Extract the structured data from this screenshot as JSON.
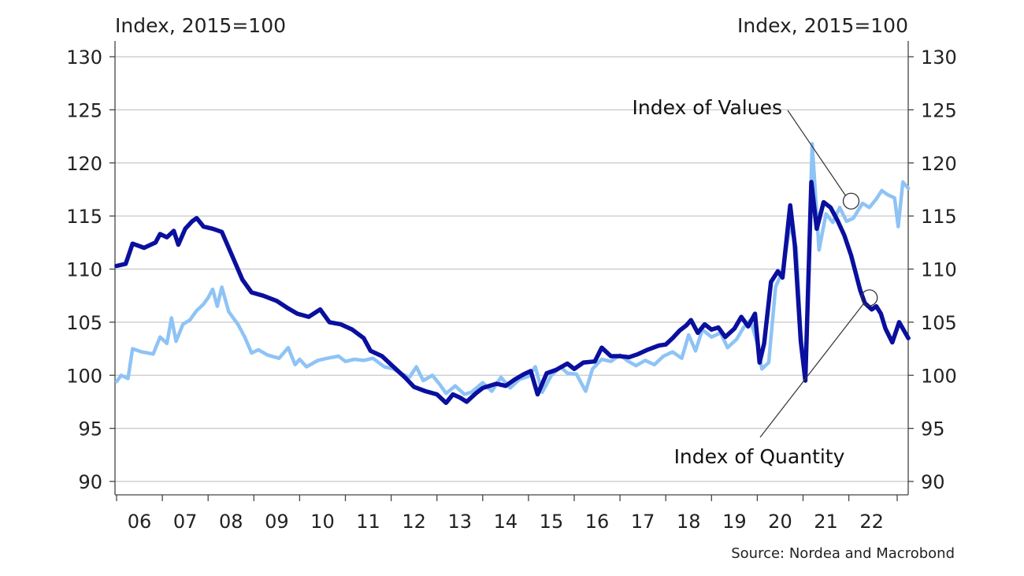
{
  "chart_data": {
    "type": "line",
    "left_axis_title": "Index, 2015=100",
    "right_axis_title": "Index, 2015=100",
    "ylim": [
      90,
      130
    ],
    "y_ticks": [
      90,
      95,
      100,
      105,
      110,
      115,
      120,
      125,
      130
    ],
    "x_range": [
      2006.0,
      2023.0
    ],
    "x_ticks": [
      {
        "label": "06",
        "year": 2006
      },
      {
        "label": "07",
        "year": 2007
      },
      {
        "label": "08",
        "year": 2008
      },
      {
        "label": "09",
        "year": 2009
      },
      {
        "label": "10",
        "year": 2010
      },
      {
        "label": "11",
        "year": 2011
      },
      {
        "label": "12",
        "year": 2012
      },
      {
        "label": "13",
        "year": 2013
      },
      {
        "label": "14",
        "year": 2014
      },
      {
        "label": "15",
        "year": 2015
      },
      {
        "label": "16",
        "year": 2016
      },
      {
        "label": "17",
        "year": 2017
      },
      {
        "label": "18",
        "year": 2018
      },
      {
        "label": "19",
        "year": 2019
      },
      {
        "label": "20",
        "year": 2020
      },
      {
        "label": "21",
        "year": 2021
      },
      {
        "label": "22",
        "year": 2022
      }
    ],
    "grid": "horizontal",
    "colors": {
      "quantity": "#0a0f9e",
      "values": "#8ec3f5",
      "grid": "#c8c8c8",
      "axis": "#444444"
    },
    "series": [
      {
        "name": "Index of Quantity",
        "color": "#0a0f9e",
        "points": [
          [
            2006.0,
            110.3
          ],
          [
            2006.2,
            110.5
          ],
          [
            2006.35,
            112.4
          ],
          [
            2006.6,
            112.0
          ],
          [
            2006.85,
            112.5
          ],
          [
            2006.95,
            113.3
          ],
          [
            2007.1,
            113.0
          ],
          [
            2007.25,
            113.6
          ],
          [
            2007.35,
            112.3
          ],
          [
            2007.5,
            113.8
          ],
          [
            2007.65,
            114.5
          ],
          [
            2007.75,
            114.8
          ],
          [
            2007.9,
            114.0
          ],
          [
            2008.1,
            113.8
          ],
          [
            2008.3,
            113.5
          ],
          [
            2008.5,
            111.5
          ],
          [
            2008.75,
            109.0
          ],
          [
            2008.95,
            107.8
          ],
          [
            2009.2,
            107.5
          ],
          [
            2009.5,
            107.0
          ],
          [
            2009.75,
            106.3
          ],
          [
            2009.95,
            105.8
          ],
          [
            2010.2,
            105.5
          ],
          [
            2010.45,
            106.2
          ],
          [
            2010.65,
            105.0
          ],
          [
            2010.9,
            104.8
          ],
          [
            2011.15,
            104.3
          ],
          [
            2011.4,
            103.5
          ],
          [
            2011.55,
            102.3
          ],
          [
            2011.8,
            101.8
          ],
          [
            2012.05,
            100.8
          ],
          [
            2012.3,
            99.8
          ],
          [
            2012.5,
            98.9
          ],
          [
            2012.75,
            98.5
          ],
          [
            2013.0,
            98.2
          ],
          [
            2013.2,
            97.4
          ],
          [
            2013.35,
            98.2
          ],
          [
            2013.5,
            97.9
          ],
          [
            2013.65,
            97.5
          ],
          [
            2013.85,
            98.3
          ],
          [
            2014.0,
            98.8
          ],
          [
            2014.3,
            99.2
          ],
          [
            2014.5,
            99.0
          ],
          [
            2014.7,
            99.6
          ],
          [
            2014.9,
            100.1
          ],
          [
            2015.05,
            100.4
          ],
          [
            2015.2,
            98.2
          ],
          [
            2015.4,
            100.2
          ],
          [
            2015.6,
            100.5
          ],
          [
            2015.85,
            101.1
          ],
          [
            2016.0,
            100.6
          ],
          [
            2016.2,
            101.2
          ],
          [
            2016.45,
            101.3
          ],
          [
            2016.6,
            102.6
          ],
          [
            2016.8,
            101.8
          ],
          [
            2017.0,
            101.8
          ],
          [
            2017.2,
            101.7
          ],
          [
            2017.4,
            102.0
          ],
          [
            2017.6,
            102.4
          ],
          [
            2017.85,
            102.8
          ],
          [
            2018.0,
            102.9
          ],
          [
            2018.15,
            103.5
          ],
          [
            2018.3,
            104.2
          ],
          [
            2018.45,
            104.7
          ],
          [
            2018.55,
            105.2
          ],
          [
            2018.7,
            104.0
          ],
          [
            2018.85,
            104.8
          ],
          [
            2019.0,
            104.3
          ],
          [
            2019.15,
            104.5
          ],
          [
            2019.3,
            103.6
          ],
          [
            2019.5,
            104.4
          ],
          [
            2019.65,
            105.5
          ],
          [
            2019.8,
            104.6
          ],
          [
            2019.95,
            105.8
          ],
          [
            2020.05,
            101.2
          ],
          [
            2020.15,
            103.0
          ],
          [
            2020.3,
            108.8
          ],
          [
            2020.45,
            109.8
          ],
          [
            2020.55,
            109.2
          ],
          [
            2020.72,
            116.0
          ],
          [
            2020.82,
            112.3
          ],
          [
            2020.95,
            103.2
          ],
          [
            2021.05,
            99.5
          ],
          [
            2021.18,
            118.2
          ],
          [
            2021.3,
            113.8
          ],
          [
            2021.45,
            116.3
          ],
          [
            2021.6,
            115.8
          ],
          [
            2021.75,
            114.6
          ],
          [
            2021.9,
            113.2
          ],
          [
            2022.05,
            111.3
          ],
          [
            2022.25,
            108.0
          ],
          [
            2022.35,
            106.8
          ],
          [
            2022.5,
            106.2
          ],
          [
            2022.6,
            106.5
          ],
          [
            2022.7,
            105.8
          ],
          [
            2022.8,
            104.4
          ],
          [
            2022.95,
            103.1
          ],
          [
            2023.1,
            105.0
          ],
          [
            2023.3,
            103.5
          ]
        ]
      },
      {
        "name": "Index of Values",
        "color": "#8ec3f5",
        "points": [
          [
            2006.0,
            99.4
          ],
          [
            2006.1,
            100.0
          ],
          [
            2006.25,
            99.7
          ],
          [
            2006.35,
            102.5
          ],
          [
            2006.55,
            102.2
          ],
          [
            2006.8,
            102.0
          ],
          [
            2006.95,
            103.6
          ],
          [
            2007.1,
            103.0
          ],
          [
            2007.2,
            105.4
          ],
          [
            2007.3,
            103.2
          ],
          [
            2007.45,
            104.8
          ],
          [
            2007.6,
            105.2
          ],
          [
            2007.75,
            106.1
          ],
          [
            2007.9,
            106.7
          ],
          [
            2008.0,
            107.3
          ],
          [
            2008.1,
            108.1
          ],
          [
            2008.2,
            106.5
          ],
          [
            2008.3,
            108.3
          ],
          [
            2008.45,
            106.0
          ],
          [
            2008.65,
            104.8
          ],
          [
            2008.8,
            103.6
          ],
          [
            2008.95,
            102.1
          ],
          [
            2009.1,
            102.4
          ],
          [
            2009.3,
            101.9
          ],
          [
            2009.55,
            101.6
          ],
          [
            2009.75,
            102.6
          ],
          [
            2009.9,
            101.0
          ],
          [
            2010.0,
            101.5
          ],
          [
            2010.15,
            100.8
          ],
          [
            2010.4,
            101.4
          ],
          [
            2010.6,
            101.6
          ],
          [
            2010.85,
            101.8
          ],
          [
            2011.0,
            101.3
          ],
          [
            2011.2,
            101.5
          ],
          [
            2011.4,
            101.4
          ],
          [
            2011.6,
            101.6
          ],
          [
            2011.85,
            100.8
          ],
          [
            2012.05,
            100.6
          ],
          [
            2012.2,
            100.2
          ],
          [
            2012.4,
            99.8
          ],
          [
            2012.55,
            100.8
          ],
          [
            2012.7,
            99.5
          ],
          [
            2012.9,
            100.0
          ],
          [
            2013.05,
            99.2
          ],
          [
            2013.2,
            98.3
          ],
          [
            2013.4,
            99.0
          ],
          [
            2013.6,
            98.2
          ],
          [
            2013.75,
            98.4
          ],
          [
            2014.0,
            99.3
          ],
          [
            2014.2,
            98.5
          ],
          [
            2014.4,
            99.8
          ],
          [
            2014.6,
            98.8
          ],
          [
            2014.8,
            99.6
          ],
          [
            2015.0,
            99.9
          ],
          [
            2015.15,
            100.8
          ],
          [
            2015.3,
            98.4
          ],
          [
            2015.5,
            100.0
          ],
          [
            2015.7,
            100.8
          ],
          [
            2015.85,
            100.2
          ],
          [
            2016.05,
            100.1
          ],
          [
            2016.25,
            98.5
          ],
          [
            2016.4,
            100.6
          ],
          [
            2016.6,
            101.5
          ],
          [
            2016.8,
            101.3
          ],
          [
            2017.0,
            101.9
          ],
          [
            2017.15,
            101.4
          ],
          [
            2017.35,
            100.9
          ],
          [
            2017.55,
            101.4
          ],
          [
            2017.75,
            101.0
          ],
          [
            2017.95,
            101.8
          ],
          [
            2018.15,
            102.2
          ],
          [
            2018.35,
            101.6
          ],
          [
            2018.5,
            103.8
          ],
          [
            2018.65,
            102.3
          ],
          [
            2018.8,
            104.3
          ],
          [
            2019.0,
            103.6
          ],
          [
            2019.2,
            104.0
          ],
          [
            2019.35,
            102.6
          ],
          [
            2019.55,
            103.4
          ],
          [
            2019.7,
            104.5
          ],
          [
            2019.85,
            105.2
          ],
          [
            2020.0,
            103.0
          ],
          [
            2020.1,
            100.6
          ],
          [
            2020.25,
            101.2
          ],
          [
            2020.4,
            108.3
          ],
          [
            2020.55,
            109.8
          ],
          [
            2020.72,
            114.2
          ],
          [
            2020.85,
            112.0
          ],
          [
            2020.95,
            104.0
          ],
          [
            2021.05,
            99.8
          ],
          [
            2021.2,
            121.8
          ],
          [
            2021.35,
            111.8
          ],
          [
            2021.5,
            115.2
          ],
          [
            2021.65,
            114.4
          ],
          [
            2021.8,
            115.8
          ],
          [
            2021.95,
            114.5
          ],
          [
            2022.1,
            114.8
          ],
          [
            2022.3,
            116.2
          ],
          [
            2022.45,
            115.8
          ],
          [
            2022.6,
            116.6
          ],
          [
            2022.72,
            117.4
          ],
          [
            2022.85,
            117.0
          ],
          [
            2023.0,
            116.7
          ],
          [
            2023.08,
            114.0
          ],
          [
            2023.18,
            118.2
          ],
          [
            2023.3,
            117.6
          ]
        ]
      }
    ],
    "annotations": [
      {
        "text": "Index of Values",
        "series": "Index of Values",
        "x": 2022.05,
        "y": 116.4
      },
      {
        "text": "Index of Quantity",
        "series": "Index of Quantity",
        "x": 2022.45,
        "y": 107.3
      }
    ],
    "source": "Source: Nordea and Macrobond"
  }
}
